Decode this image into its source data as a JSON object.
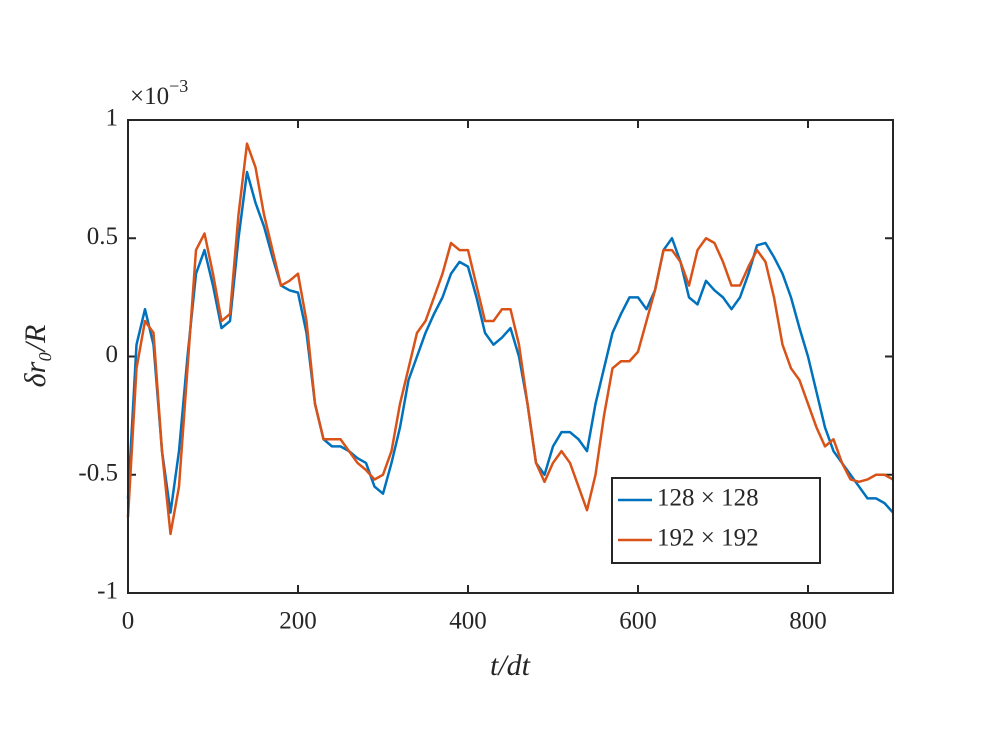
{
  "chart_data": {
    "type": "line",
    "xlabel": "t/dt",
    "ylabel": "δr₀/R",
    "y_multiplier": {
      "base": "×10",
      "exponent": "−3"
    },
    "x": [
      0,
      10,
      20,
      30,
      40,
      50,
      60,
      70,
      80,
      90,
      100,
      110,
      120,
      130,
      140,
      150,
      160,
      170,
      180,
      190,
      200,
      210,
      220,
      230,
      240,
      250,
      260,
      270,
      280,
      290,
      300,
      310,
      320,
      330,
      340,
      350,
      360,
      370,
      380,
      390,
      400,
      410,
      420,
      430,
      440,
      450,
      460,
      470,
      480,
      490,
      500,
      510,
      520,
      530,
      540,
      550,
      560,
      570,
      580,
      590,
      600,
      610,
      620,
      630,
      640,
      650,
      660,
      670,
      680,
      690,
      700,
      710,
      720,
      730,
      740,
      750,
      760,
      770,
      780,
      790,
      800,
      810,
      820,
      830,
      840,
      850,
      860,
      870,
      880,
      890,
      900
    ],
    "series": [
      {
        "name": "128 × 128",
        "color": "#0072bd",
        "values": [
          -0.6,
          0.05,
          0.2,
          0.05,
          -0.4,
          -0.66,
          -0.4,
          0.0,
          0.35,
          0.45,
          0.3,
          0.12,
          0.15,
          0.5,
          0.78,
          0.65,
          0.55,
          0.42,
          0.3,
          0.28,
          0.27,
          0.1,
          -0.2,
          -0.35,
          -0.38,
          -0.38,
          -0.4,
          -0.43,
          -0.45,
          -0.55,
          -0.58,
          -0.45,
          -0.3,
          -0.1,
          0.0,
          0.1,
          0.18,
          0.25,
          0.35,
          0.4,
          0.38,
          0.25,
          0.1,
          0.05,
          0.08,
          0.12,
          0.0,
          -0.2,
          -0.45,
          -0.5,
          -0.38,
          -0.32,
          -0.32,
          -0.35,
          -0.4,
          -0.2,
          -0.05,
          0.1,
          0.18,
          0.25,
          0.25,
          0.2,
          0.28,
          0.45,
          0.5,
          0.4,
          0.25,
          0.22,
          0.32,
          0.28,
          0.25,
          0.2,
          0.25,
          0.35,
          0.47,
          0.48,
          0.42,
          0.35,
          0.25,
          0.12,
          0.0,
          -0.15,
          -0.3,
          -0.4,
          -0.45,
          -0.5,
          -0.55,
          -0.6,
          -0.6,
          -0.62,
          -0.66
        ]
      },
      {
        "name": "192 × 192",
        "color": "#d95319",
        "values": [
          -0.68,
          -0.05,
          0.15,
          0.1,
          -0.4,
          -0.75,
          -0.55,
          -0.05,
          0.45,
          0.52,
          0.35,
          0.15,
          0.18,
          0.6,
          0.9,
          0.8,
          0.6,
          0.45,
          0.3,
          0.32,
          0.35,
          0.15,
          -0.2,
          -0.35,
          -0.35,
          -0.35,
          -0.4,
          -0.45,
          -0.48,
          -0.52,
          -0.5,
          -0.4,
          -0.2,
          -0.05,
          0.1,
          0.15,
          0.25,
          0.35,
          0.48,
          0.45,
          0.45,
          0.3,
          0.15,
          0.15,
          0.2,
          0.2,
          0.05,
          -0.2,
          -0.45,
          -0.53,
          -0.45,
          -0.4,
          -0.45,
          -0.55,
          -0.65,
          -0.5,
          -0.25,
          -0.05,
          -0.02,
          -0.02,
          0.02,
          0.15,
          0.28,
          0.45,
          0.45,
          0.4,
          0.3,
          0.45,
          0.5,
          0.48,
          0.4,
          0.3,
          0.3,
          0.38,
          0.45,
          0.4,
          0.25,
          0.05,
          -0.05,
          -0.1,
          -0.2,
          -0.3,
          -0.38,
          -0.35,
          -0.45,
          -0.52,
          -0.53,
          -0.52,
          -0.5,
          -0.5,
          -0.52
        ]
      }
    ],
    "xlim": [
      0,
      900
    ],
    "xticks": [
      0,
      200,
      400,
      600,
      800
    ],
    "ylim": [
      -1,
      1
    ],
    "yticks": [
      -1,
      -0.5,
      0,
      0.5,
      1
    ],
    "grid": false,
    "legend": "lower right"
  }
}
